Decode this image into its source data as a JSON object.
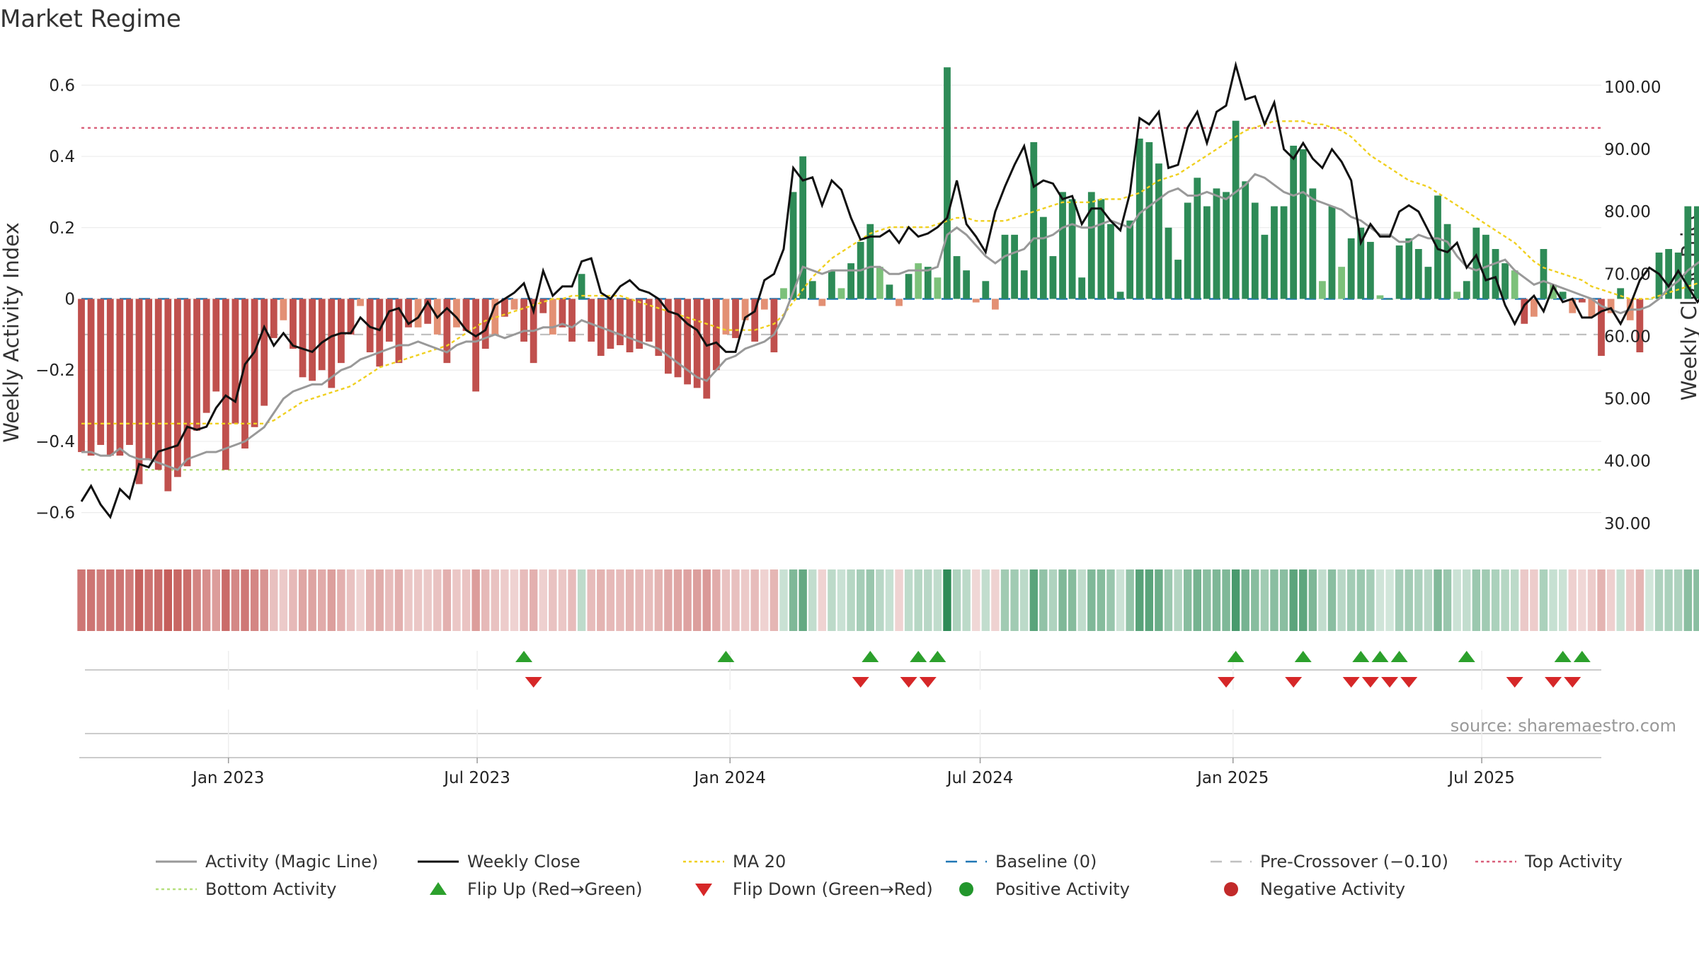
{
  "chart_data": {
    "type": "bar",
    "title": "Market Regime",
    "ylabel_left": "Weekly Activity Index",
    "ylabel_right": "Weekly Close Price",
    "source_note": "source: sharemaestro.com",
    "left_ylim": [
      -0.7,
      0.7
    ],
    "left_ticks": [
      0.6,
      0.4,
      0.2,
      0,
      -0.2,
      -0.4,
      -0.6
    ],
    "left_tick_labels": [
      "0.6",
      "0.4",
      "0.2",
      "0",
      "−0.2",
      "−0.4",
      "−0.6"
    ],
    "right_ylim": [
      26,
      106
    ],
    "right_ticks": [
      100,
      90,
      80,
      70,
      60,
      50,
      40,
      30
    ],
    "right_tick_labels": [
      "100.00",
      "90.00",
      "80.00",
      "70.00",
      "60.00",
      "50.00",
      "40.00",
      "30.00"
    ],
    "x_range": [
      "2022-09-16",
      "2025-09-26"
    ],
    "x_ticks": [
      "2023-01-01",
      "2023-07-01",
      "2024-01-01",
      "2024-07-01",
      "2025-01-01",
      "2025-07-01"
    ],
    "x_tick_labels": [
      "Jan 2023",
      "Jul 2023",
      "Jan 2024",
      "Jul 2024",
      "Jan 2025",
      "Jul 2025"
    ],
    "weeks_start": "2022-09-16",
    "weeks_interval_days": 7,
    "activity": [
      -0.43,
      -0.44,
      -0.41,
      -0.44,
      -0.44,
      -0.41,
      -0.52,
      -0.45,
      -0.48,
      -0.54,
      -0.5,
      -0.47,
      -0.37,
      -0.32,
      -0.26,
      -0.48,
      -0.35,
      -0.42,
      -0.36,
      -0.3,
      -0.11,
      -0.06,
      -0.14,
      -0.22,
      -0.23,
      -0.2,
      -0.25,
      -0.18,
      -0.1,
      -0.02,
      -0.15,
      -0.19,
      -0.12,
      -0.18,
      -0.08,
      -0.08,
      -0.07,
      -0.1,
      -0.18,
      -0.08,
      -0.09,
      -0.26,
      -0.14,
      -0.1,
      -0.05,
      -0.03,
      -0.12,
      -0.18,
      -0.04,
      -0.1,
      -0.08,
      -0.12,
      0.07,
      -0.12,
      -0.16,
      -0.14,
      -0.13,
      -0.15,
      -0.14,
      -0.12,
      -0.16,
      -0.21,
      -0.22,
      -0.24,
      -0.25,
      -0.28,
      -0.2,
      -0.1,
      -0.11,
      -0.06,
      -0.12,
      -0.03,
      -0.15,
      0.03,
      0.3,
      0.4,
      0.05,
      -0.02,
      0.08,
      0.03,
      0.1,
      0.16,
      0.21,
      0.09,
      0.04,
      -0.02,
      0.07,
      0.1,
      0.09,
      0.06,
      0.65,
      0.12,
      0.08,
      -0.01,
      0.05,
      -0.03,
      0.18,
      0.18,
      0.08,
      0.44,
      0.23,
      0.12,
      0.3,
      0.28,
      0.06,
      0.3,
      0.28,
      0.21,
      0.02,
      0.22,
      0.45,
      0.44,
      0.38,
      0.2,
      0.11,
      0.27,
      0.34,
      0.26,
      0.31,
      0.3,
      0.5,
      0.33,
      0.27,
      0.18,
      0.26,
      0.26,
      0.43,
      0.42,
      0.31,
      0.05,
      0.26,
      0.09,
      0.17,
      0.2,
      0.16,
      0.01,
      0.0,
      0.15,
      0.17,
      0.14,
      0.09,
      0.29,
      0.21,
      0.02,
      0.05,
      0.2,
      0.18,
      0.14,
      0.1,
      0.08,
      -0.07,
      -0.05,
      0.14,
      0.04,
      0.02,
      -0.04,
      -0.01,
      -0.05,
      -0.16,
      -0.04,
      0.03,
      -0.06,
      -0.15,
      0.0,
      0.13,
      0.14,
      0.13,
      0.26,
      0.26,
      0.1,
      0.03,
      -0.13,
      -0.22,
      -0.12,
      0.19,
      -0.13,
      -0.02,
      -0.11,
      -0.07
    ],
    "magic_line": [
      -0.43,
      -0.43,
      -0.44,
      -0.44,
      -0.42,
      -0.44,
      -0.45,
      -0.45,
      -0.46,
      -0.47,
      -0.48,
      -0.45,
      -0.44,
      -0.43,
      -0.43,
      -0.42,
      -0.41,
      -0.4,
      -0.38,
      -0.36,
      -0.32,
      -0.28,
      -0.26,
      -0.25,
      -0.24,
      -0.24,
      -0.22,
      -0.2,
      -0.19,
      -0.17,
      -0.16,
      -0.15,
      -0.14,
      -0.13,
      -0.13,
      -0.12,
      -0.13,
      -0.14,
      -0.15,
      -0.13,
      -0.12,
      -0.12,
      -0.11,
      -0.1,
      -0.11,
      -0.1,
      -0.09,
      -0.09,
      -0.08,
      -0.08,
      -0.07,
      -0.08,
      -0.06,
      -0.07,
      -0.08,
      -0.09,
      -0.1,
      -0.11,
      -0.12,
      -0.13,
      -0.14,
      -0.16,
      -0.18,
      -0.2,
      -0.22,
      -0.23,
      -0.2,
      -0.17,
      -0.16,
      -0.14,
      -0.13,
      -0.12,
      -0.1,
      -0.05,
      0.02,
      0.09,
      0.08,
      0.07,
      0.08,
      0.08,
      0.08,
      0.08,
      0.09,
      0.09,
      0.07,
      0.07,
      0.08,
      0.08,
      0.08,
      0.09,
      0.18,
      0.2,
      0.18,
      0.15,
      0.12,
      0.1,
      0.12,
      0.13,
      0.14,
      0.17,
      0.17,
      0.18,
      0.2,
      0.21,
      0.2,
      0.2,
      0.21,
      0.22,
      0.21,
      0.2,
      0.24,
      0.26,
      0.28,
      0.3,
      0.31,
      0.29,
      0.29,
      0.3,
      0.29,
      0.28,
      0.3,
      0.32,
      0.35,
      0.34,
      0.32,
      0.3,
      0.29,
      0.3,
      0.28,
      0.27,
      0.26,
      0.25,
      0.23,
      0.22,
      0.2,
      0.18,
      0.18,
      0.16,
      0.16,
      0.18,
      0.17,
      0.17,
      0.16,
      0.12,
      0.09,
      0.08,
      0.09,
      0.1,
      0.11,
      0.08,
      0.06,
      0.04,
      0.05,
      0.04,
      0.03,
      0.02,
      0.01,
      0.0,
      -0.02,
      -0.03,
      -0.04,
      -0.03,
      -0.03,
      -0.02,
      0.0,
      0.03,
      0.05,
      0.08,
      0.1,
      0.12,
      0.1,
      0.05,
      0.02,
      0.0,
      0.01,
      -0.01,
      -0.02,
      -0.03,
      -0.04
    ],
    "weekly_close": [
      33.5,
      36.0,
      33.0,
      31.0,
      35.5,
      34.0,
      39.5,
      39.0,
      41.5,
      42.0,
      42.5,
      45.5,
      45.0,
      45.5,
      48.5,
      50.5,
      49.5,
      55.5,
      57.5,
      61.5,
      58.5,
      60.5,
      58.5,
      58.0,
      57.5,
      59.0,
      60.0,
      60.5,
      60.5,
      63.0,
      61.5,
      61.0,
      64.0,
      64.5,
      62.0,
      63.0,
      65.5,
      63.0,
      64.5,
      63.0,
      61.0,
      60.0,
      61.0,
      65.0,
      66.0,
      67.0,
      68.5,
      64.0,
      70.5,
      66.5,
      68.0,
      68.0,
      72.0,
      72.5,
      67.0,
      66.0,
      68.0,
      69.0,
      67.5,
      67.0,
      66.0,
      64.0,
      63.5,
      62.0,
      61.0,
      58.5,
      59.0,
      57.5,
      57.5,
      63.0,
      64.0,
      69.0,
      70.0,
      74.0,
      87.0,
      85.0,
      85.5,
      81.0,
      85.0,
      83.5,
      79.0,
      75.5,
      76.0,
      76.0,
      77.0,
      75.0,
      77.5,
      76.0,
      76.5,
      77.5,
      79.0,
      85.0,
      78.0,
      76.0,
      73.5,
      80.0,
      84.0,
      87.5,
      90.5,
      84.0,
      85.0,
      84.5,
      82.0,
      82.5,
      78.0,
      80.5,
      80.5,
      78.5,
      77.0,
      83.0,
      95.0,
      94.0,
      96.0,
      87.0,
      87.5,
      93.5,
      96.0,
      91.0,
      96.0,
      97.0,
      103.5,
      98.0,
      98.5,
      94.0,
      97.5,
      90.0,
      88.5,
      91.0,
      88.5,
      87.0,
      90.0,
      88.0,
      85.0,
      75.0,
      78.0,
      76.0,
      76.0,
      80.0,
      81.0,
      80.0,
      77.0,
      74.0,
      73.5,
      75.0,
      71.0,
      73.0,
      69.0,
      69.5,
      65.0,
      62.0,
      65.0,
      66.5,
      64.0,
      68.0,
      65.5,
      66.0,
      63.0,
      63.0,
      64.0,
      64.5,
      62.0,
      65.0,
      69.0,
      71.0,
      70.0,
      68.0,
      70.5,
      68.0,
      65.5,
      67.5,
      68.5,
      72.0,
      72.0,
      82.0,
      77.5,
      78.0
    ],
    "ma20": [
      46.0,
      46.0,
      46.0,
      46.0,
      46.0,
      46.0,
      46.0,
      46.0,
      46.0,
      46.0,
      46.0,
      46.0,
      46.0,
      46.0,
      46.0,
      46.0,
      46.0,
      46.0,
      46.0,
      46.0,
      46.5,
      47.5,
      48.5,
      49.5,
      50.0,
      50.5,
      51.0,
      51.5,
      52.0,
      53.0,
      54.0,
      55.0,
      55.5,
      56.0,
      56.5,
      57.0,
      57.5,
      58.0,
      58.5,
      59.5,
      60.5,
      61.5,
      62.5,
      63.0,
      63.5,
      64.0,
      64.5,
      65.0,
      65.5,
      66.0,
      66.0,
      66.5,
      66.5,
      66.5,
      66.5,
      66.5,
      66.5,
      66.0,
      65.5,
      65.0,
      64.5,
      64.0,
      63.5,
      63.0,
      62.5,
      62.0,
      61.5,
      61.0,
      61.0,
      61.0,
      61.0,
      61.5,
      62.0,
      63.5,
      65.5,
      67.5,
      69.5,
      71.0,
      72.5,
      73.5,
      74.5,
      75.5,
      76.5,
      77.0,
      77.5,
      77.5,
      77.5,
      77.5,
      77.5,
      78.0,
      78.5,
      79.0,
      79.0,
      78.5,
      78.5,
      78.5,
      78.5,
      79.0,
      79.5,
      80.0,
      80.5,
      81.0,
      81.5,
      81.5,
      81.5,
      81.5,
      82.0,
      82.0,
      82.0,
      82.5,
      83.0,
      84.0,
      85.0,
      85.5,
      86.0,
      87.0,
      88.0,
      89.0,
      90.0,
      91.0,
      92.0,
      93.0,
      93.5,
      94.0,
      94.5,
      94.5,
      94.5,
      94.5,
      94.0,
      94.0,
      93.5,
      93.0,
      92.0,
      90.5,
      89.0,
      88.0,
      87.0,
      86.0,
      85.0,
      84.5,
      84.0,
      83.0,
      82.0,
      81.0,
      80.0,
      79.0,
      78.0,
      77.0,
      76.0,
      75.0,
      73.5,
      72.0,
      71.0,
      70.5,
      70.0,
      69.5,
      69.0,
      68.0,
      67.5,
      67.0,
      66.5,
      66.0,
      66.0,
      66.0,
      66.5,
      67.0,
      67.5,
      68.0,
      68.5,
      68.5,
      68.5,
      69.5,
      70.5,
      71.5,
      72.5,
      73.5,
      74.0
    ],
    "flip_up_dates": [
      "2023-08-04",
      "2023-12-29",
      "2024-04-12",
      "2024-05-17",
      "2024-05-31",
      "2025-01-03",
      "2025-02-21",
      "2025-04-04",
      "2025-04-18",
      "2025-05-02",
      "2025-06-20",
      "2025-08-29",
      "2025-09-12"
    ],
    "flip_down_dates": [
      "2023-08-11",
      "2024-04-05",
      "2024-05-10",
      "2024-05-24",
      "2024-12-27",
      "2025-02-14",
      "2025-03-28",
      "2025-04-11",
      "2025-04-25",
      "2025-05-09",
      "2025-07-25",
      "2025-08-22",
      "2025-09-05"
    ],
    "baseline": 0,
    "pre_crossover": -0.1,
    "top_activity": 0.48,
    "bottom_activity": -0.48,
    "grid": true,
    "colors": {
      "strong_red": "#c0504d",
      "light_red": "#e39074",
      "strong_green": "#2e8b57",
      "light_green": "#7cc17a",
      "magic_line": "#999999",
      "weekly_close": "#111111",
      "ma20": "#f0d020",
      "baseline": "#1f77b4",
      "pre_crossover": "#c0c0c0",
      "top_activity": "#d9607a",
      "bottom_activity": "#b6e07e",
      "flip_up": "#2ca02c",
      "flip_down": "#d62728",
      "positive": "#22962c",
      "negative": "#c22a2a"
    },
    "legend_position": "bottom",
    "legend": [
      {
        "key": "magic_line",
        "label": "Activity (Magic Line)",
        "marker": "line"
      },
      {
        "key": "weekly_close",
        "label": "Weekly Close",
        "marker": "line"
      },
      {
        "key": "ma20",
        "label": "MA 20",
        "marker": "dotted"
      },
      {
        "key": "baseline",
        "label": "Baseline (0)",
        "marker": "dashed"
      },
      {
        "key": "pre_crossover",
        "label": "Pre-Crossover (−0.10)",
        "marker": "dashed"
      },
      {
        "key": "top_activity",
        "label": "Top Activity",
        "marker": "dotted"
      },
      {
        "key": "bottom_activity",
        "label": "Bottom Activity",
        "marker": "dotted"
      },
      {
        "key": "flip_up",
        "label": "Flip Up (Red→Green)",
        "marker": "triangle-up"
      },
      {
        "key": "flip_down",
        "label": "Flip Down (Green→Red)",
        "marker": "triangle-down"
      },
      {
        "key": "positive",
        "label": "Positive Activity",
        "marker": "circle"
      },
      {
        "key": "negative",
        "label": "Negative Activity",
        "marker": "circle"
      }
    ]
  }
}
